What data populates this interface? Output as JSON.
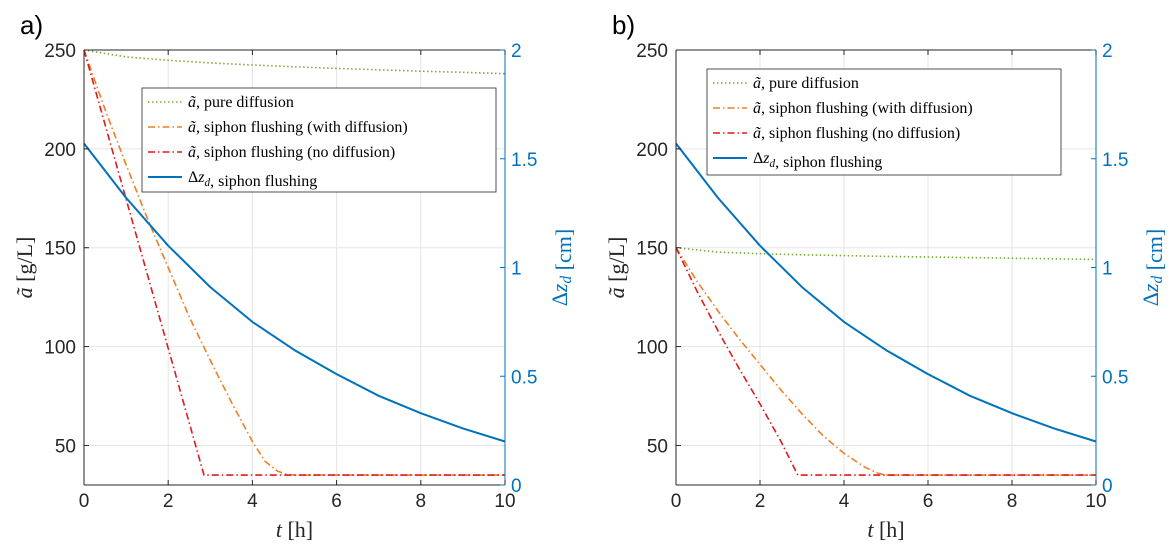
{
  "panel_labels": [
    "a)",
    "b)"
  ],
  "colors": {
    "pure_diffusion": "#77AC30",
    "siphon_with_diffusion": "#F07F22",
    "siphon_no_diffusion": "#E31A1C",
    "dz": "#0072BD",
    "grid": "#E5E5E5",
    "axis": "#262626"
  },
  "chart_data": [
    {
      "type": "line",
      "panel": "a)",
      "xlabel": "t [h]",
      "ylabel": "ã [g/L]",
      "ylabel_right": "Δz_d [cm]",
      "xlim": [
        0,
        10
      ],
      "ylim": [
        30,
        250
      ],
      "ylim_right": [
        0,
        2
      ],
      "xticks": [
        0,
        2,
        4,
        6,
        8,
        10
      ],
      "yticks": [
        50,
        100,
        150,
        200,
        250
      ],
      "yticks_right": [
        0,
        0.5,
        1,
        1.5,
        2
      ],
      "grid": true,
      "legend_position": "upper-center",
      "series": [
        {
          "name": "ã, pure diffusion",
          "axis": "left",
          "style": "dotted",
          "x": [
            0,
            1,
            2,
            3,
            4,
            5,
            6,
            7,
            8,
            9,
            10
          ],
          "y": [
            250,
            246.5,
            244.8,
            243.5,
            242.4,
            241.5,
            240.7,
            240,
            239.3,
            238.7,
            238
          ]
        },
        {
          "name": "ã, siphon flushing (with diffusion)",
          "axis": "left",
          "style": "dashdot",
          "x": [
            0,
            0.5,
            1,
            1.5,
            2,
            2.5,
            3,
            3.5,
            4,
            4.3,
            4.6,
            4.8,
            5.0,
            5.3,
            6,
            7,
            8,
            9,
            10
          ],
          "y": [
            250,
            220,
            192,
            165,
            140,
            115,
            93,
            72,
            52,
            42,
            37,
            35.5,
            35,
            35,
            35,
            35,
            35,
            35,
            35
          ]
        },
        {
          "name": "ã, siphon flushing (no diffusion)",
          "axis": "left",
          "style": "dashdot",
          "x": [
            0,
            2.85,
            3,
            4,
            5,
            6,
            7,
            8,
            9,
            10
          ],
          "y": [
            250,
            35,
            35,
            35,
            35,
            35,
            35,
            35,
            35,
            35
          ]
        },
        {
          "name": "Δz_d, siphon flushing",
          "axis": "right",
          "style": "solid",
          "x": [
            0,
            1,
            2,
            3,
            4,
            5,
            6,
            7,
            8,
            9,
            10
          ],
          "y": [
            1.57,
            1.32,
            1.1,
            0.91,
            0.75,
            0.62,
            0.51,
            0.41,
            0.33,
            0.26,
            0.2
          ]
        }
      ]
    },
    {
      "type": "line",
      "panel": "b)",
      "xlabel": "t [h]",
      "ylabel": "ã [g/L]",
      "ylabel_right": "Δz_d [cm]",
      "xlim": [
        0,
        10
      ],
      "ylim": [
        30,
        250
      ],
      "ylim_right": [
        0,
        2
      ],
      "xticks": [
        0,
        2,
        4,
        6,
        8,
        10
      ],
      "yticks": [
        50,
        100,
        150,
        200,
        250
      ],
      "yticks_right": [
        0,
        0.5,
        1,
        1.5,
        2
      ],
      "grid": true,
      "legend_position": "top-center",
      "series": [
        {
          "name": "ã, pure diffusion",
          "axis": "left",
          "style": "dotted",
          "x": [
            0,
            1,
            2,
            3,
            4,
            5,
            6,
            7,
            8,
            9,
            10
          ],
          "y": [
            150,
            147.8,
            147,
            146.4,
            146,
            145.6,
            145.3,
            145,
            144.7,
            144.4,
            144.1
          ]
        },
        {
          "name": "ã, siphon flushing (with diffusion)",
          "axis": "left",
          "style": "dashdot",
          "x": [
            0,
            0.5,
            1,
            1.5,
            2,
            2.5,
            3,
            3.5,
            4,
            4.5,
            4.8,
            5.0,
            5.3,
            6,
            7,
            8,
            9,
            10
          ],
          "y": [
            150,
            133,
            118,
            104,
            91,
            78,
            66,
            55,
            46,
            39,
            36,
            35,
            35,
            35,
            35,
            35,
            35,
            35
          ]
        },
        {
          "name": "ã, siphon flushing (no diffusion)",
          "axis": "left",
          "style": "dashdot",
          "x": [
            0,
            0.5,
            1,
            1.5,
            2,
            2.5,
            2.9,
            3,
            4,
            5,
            6,
            7,
            8,
            9,
            10
          ],
          "y": [
            150,
            128,
            108,
            89,
            71,
            52,
            35,
            35,
            35,
            35,
            35,
            35,
            35,
            35,
            35
          ]
        },
        {
          "name": "Δz_d, siphon flushing",
          "axis": "right",
          "style": "solid",
          "x": [
            0,
            1,
            2,
            3,
            4,
            5,
            6,
            7,
            8,
            9,
            10
          ],
          "y": [
            1.57,
            1.32,
            1.1,
            0.91,
            0.75,
            0.62,
            0.51,
            0.41,
            0.33,
            0.26,
            0.2
          ]
        }
      ]
    }
  ]
}
